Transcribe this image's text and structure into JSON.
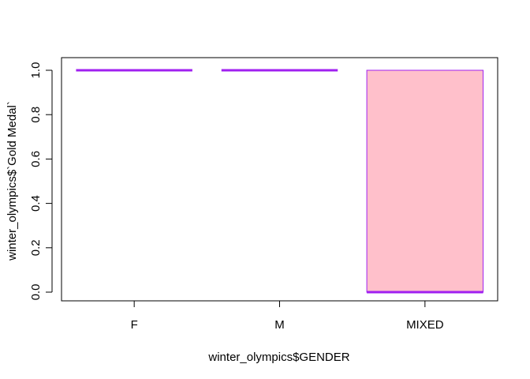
{
  "chart_data": {
    "type": "boxplot",
    "xlabel": "winter_olympics$GENDER",
    "ylabel": "winter_olympics$`Gold Medal`",
    "ylim": [
      0,
      1
    ],
    "yticks": [
      "0.0",
      "0.2",
      "0.4",
      "0.6",
      "0.8",
      "1.0"
    ],
    "categories": [
      "F",
      "M",
      "MIXED"
    ],
    "boxes": [
      {
        "category": "F",
        "min": 1.0,
        "q1": 1.0,
        "median": 1.0,
        "q3": 1.0,
        "max": 1.0
      },
      {
        "category": "M",
        "min": 1.0,
        "q1": 1.0,
        "median": 1.0,
        "q3": 1.0,
        "max": 1.0
      },
      {
        "category": "MIXED",
        "min": 0.0,
        "q1": 0.0,
        "median": 0.0,
        "q3": 1.0,
        "max": 1.0
      }
    ],
    "box_fill": "#ffc0cb",
    "box_border": "#a020f0",
    "median_color": "#a020f0"
  }
}
